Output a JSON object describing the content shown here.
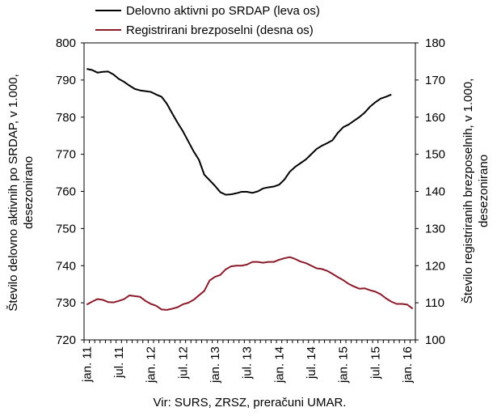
{
  "chart_data": {
    "type": "line",
    "title": "",
    "legend": {
      "position": "top",
      "entries": [
        {
          "label": "Delovno aktivni po SRDAP (leva os)",
          "color": "#000000"
        },
        {
          "label": "Registrirani brezposelni (desna os)",
          "color": "#8B1A2B"
        }
      ]
    },
    "y_left": {
      "label_lines": [
        "Število delovno aktivnih po SRDAP, v 1.000,",
        "desezonirano"
      ],
      "min": 720,
      "max": 800,
      "ticks": [
        720,
        730,
        740,
        750,
        760,
        770,
        780,
        790,
        800
      ]
    },
    "y_right": {
      "label_lines": [
        "Število registriranih brezposelnih, v 1.000,",
        "desezonirano"
      ],
      "min": 100,
      "max": 180,
      "ticks": [
        100,
        110,
        120,
        130,
        140,
        150,
        160,
        170,
        180
      ]
    },
    "x_tick_labels": [
      "jan. 11",
      "jul. 11",
      "jan. 12",
      "jul. 12",
      "jan. 13",
      "jul. 13",
      "jan. 14",
      "jul. 14",
      "jan. 15",
      "jul. 15",
      "jan. 16"
    ],
    "x_months": [
      "2011-01",
      "2011-02",
      "2011-03",
      "2011-04",
      "2011-05",
      "2011-06",
      "2011-07",
      "2011-08",
      "2011-09",
      "2011-10",
      "2011-11",
      "2011-12",
      "2012-01",
      "2012-02",
      "2012-03",
      "2012-04",
      "2012-05",
      "2012-06",
      "2012-07",
      "2012-08",
      "2012-09",
      "2012-10",
      "2012-11",
      "2012-12",
      "2013-01",
      "2013-02",
      "2013-03",
      "2013-04",
      "2013-05",
      "2013-06",
      "2013-07",
      "2013-08",
      "2013-09",
      "2013-10",
      "2013-11",
      "2013-12",
      "2014-01",
      "2014-02",
      "2014-03",
      "2014-04",
      "2014-05",
      "2014-06",
      "2014-07",
      "2014-08",
      "2014-09",
      "2014-10",
      "2014-11",
      "2014-12",
      "2015-01",
      "2015-02",
      "2015-03",
      "2015-04",
      "2015-05",
      "2015-06",
      "2015-07",
      "2015-08",
      "2015-09",
      "2015-10",
      "2015-11",
      "2015-12",
      "2016-01",
      "2016-02"
    ],
    "series": [
      {
        "name": "Delovno aktivni po SRDAP (leva os)",
        "axis": "left",
        "color": "#000000",
        "values": [
          793,
          792.7,
          792,
          792.2,
          792.3,
          791.5,
          790.3,
          789.5,
          788.5,
          787.6,
          787.2,
          787,
          786.8,
          786.1,
          785.5,
          783.6,
          781,
          778.5,
          776.2,
          773.5,
          770.8,
          768.5,
          764.5,
          763,
          761.5,
          759.8,
          759.1,
          759.2,
          759.5,
          759.9,
          759.9,
          759.6,
          760,
          760.8,
          761.1,
          761.3,
          761.8,
          763.2,
          765.3,
          766.6,
          767.6,
          768.6,
          770,
          771.4,
          772.3,
          773,
          773.8,
          775.8,
          777.3,
          778,
          779,
          780,
          781.2,
          782.8,
          784,
          785,
          785.5,
          786.1,
          null,
          null,
          null,
          null
        ]
      },
      {
        "name": "Registrirani brezposelni (desna os)",
        "axis": "right",
        "color": "#8B1A2B",
        "values": [
          109.5,
          110.3,
          111,
          110.8,
          110.2,
          110.1,
          110.5,
          111,
          112,
          111.8,
          111.6,
          110.5,
          109.7,
          109.2,
          108.2,
          108.1,
          108.4,
          108.8,
          109.6,
          110,
          110.8,
          112,
          113.2,
          116,
          117,
          117.5,
          119,
          119.8,
          120,
          120,
          120.3,
          121,
          121,
          120.8,
          121,
          121,
          121.6,
          122,
          122.3,
          121.8,
          121.1,
          120.7,
          120,
          119.3,
          119.1,
          118.6,
          117.8,
          116.9,
          116.1,
          115.1,
          114.4,
          113.8,
          113.9,
          113.4,
          113,
          112.3,
          111.2,
          110.3,
          109.7,
          109.7,
          109.5,
          108.4
        ]
      }
    ],
    "source_text": "Vir: SURS, ZRSZ, preračuni UMAR.",
    "grid": false
  }
}
